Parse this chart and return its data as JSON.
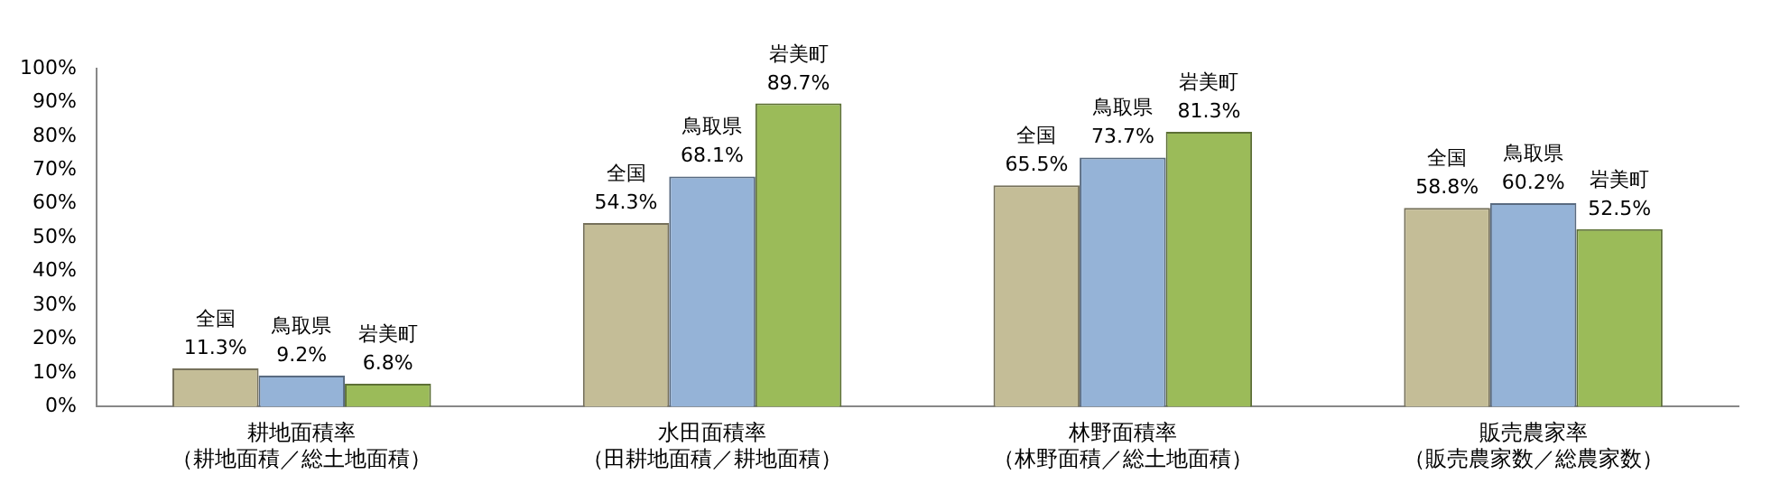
{
  "chart_data": {
    "type": "bar",
    "categories": [
      "耕地面積率（耕地面積／総土地面積）",
      "水田面積率（田耕地面積／耕地面積）",
      "林野面積率（林野面積／総土地面積）",
      "販売農家率（販売農家数／総農家数）"
    ],
    "series": [
      {
        "name": "全国",
        "color": "#c4bd97",
        "values": [
          11.3,
          54.3,
          65.5,
          58.8
        ],
        "value_labels": [
          "11.3%",
          "54.3%",
          "65.5%",
          "58.8%"
        ]
      },
      {
        "name": "鳥取県",
        "color": "#95b3d7",
        "values": [
          9.2,
          68.1,
          73.7,
          60.2
        ],
        "value_labels": [
          "9.2%",
          "68.1%",
          "73.7%",
          "60.2%"
        ]
      },
      {
        "name": "岩美町",
        "color": "#9bbb59",
        "values": [
          6.8,
          89.7,
          81.3,
          52.5
        ],
        "value_labels": [
          "6.8%",
          "89.7%",
          "81.3%",
          "52.5%"
        ]
      }
    ],
    "ylim": [
      0,
      100
    ],
    "yticks": [
      {
        "value": 0,
        "label": "0%"
      },
      {
        "value": 10,
        "label": "10%"
      },
      {
        "value": 20,
        "label": "20%"
      },
      {
        "value": 30,
        "label": "30%"
      },
      {
        "value": 40,
        "label": "40%"
      },
      {
        "value": 50,
        "label": "50%"
      },
      {
        "value": 60,
        "label": "60%"
      },
      {
        "value": 70,
        "label": "70%"
      },
      {
        "value": 80,
        "label": "80%"
      },
      {
        "value": 90,
        "label": "90%"
      },
      {
        "value": 100,
        "label": "100%"
      }
    ],
    "grid": false,
    "legend": false
  }
}
